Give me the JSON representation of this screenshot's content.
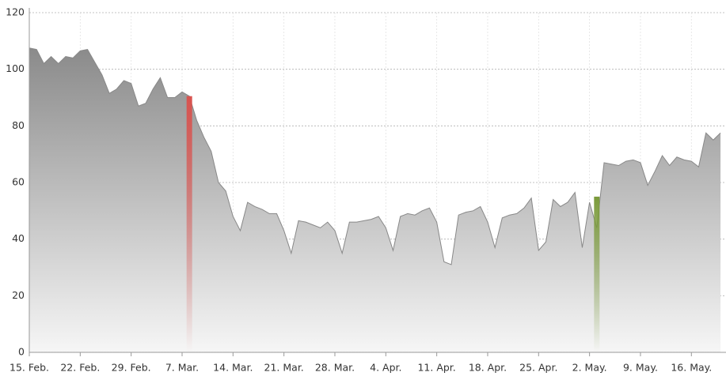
{
  "chart_data": {
    "type": "area",
    "categories": [
      "15. Feb.",
      null,
      null,
      null,
      null,
      null,
      null,
      "22. Feb.",
      null,
      null,
      null,
      null,
      null,
      null,
      "29. Feb.",
      null,
      null,
      null,
      null,
      null,
      null,
      "7. Mar.",
      null,
      null,
      null,
      null,
      null,
      null,
      "14. Mar.",
      null,
      null,
      null,
      null,
      null,
      null,
      "21. Mar.",
      null,
      null,
      null,
      null,
      null,
      null,
      "28. Mar.",
      null,
      null,
      null,
      null,
      null,
      null,
      "4. Apr.",
      null,
      null,
      null,
      null,
      null,
      null,
      "11. Apr.",
      null,
      null,
      null,
      null,
      null,
      null,
      "18. Apr.",
      null,
      null,
      null,
      null,
      null,
      null,
      "25. Apr.",
      null,
      null,
      null,
      null,
      null,
      null,
      "2. May.",
      null,
      null,
      null,
      null,
      null,
      null,
      "9. May.",
      null,
      null,
      null,
      null,
      null,
      null,
      "16. May.",
      null,
      null,
      null,
      null
    ],
    "series": [
      {
        "color": "#888888",
        "values": [
          107.5,
          107,
          102,
          104.5,
          102,
          104.5,
          104,
          106.5,
          107,
          102.5,
          98,
          91.5,
          93,
          96,
          95,
          87,
          88,
          93,
          97,
          90,
          90,
          92,
          90.5,
          82,
          76,
          71,
          60,
          57,
          48,
          43,
          53,
          51.5,
          50.5,
          49,
          49,
          43,
          35,
          46.5,
          46,
          45,
          44,
          46,
          43,
          35,
          46,
          46,
          46.5,
          47,
          48,
          44,
          36,
          48,
          49,
          48.5,
          50,
          51,
          46,
          32,
          31,
          48.5,
          49.5,
          50,
          51.5,
          46,
          37,
          47.5,
          48.5,
          49,
          51,
          54.5,
          36,
          39,
          54,
          51.5,
          53,
          56.5,
          37,
          53,
          44,
          67,
          66.5,
          66,
          67.5,
          68,
          67,
          59,
          64,
          69.5,
          66,
          69,
          68,
          67.5,
          65.5,
          77.5,
          75,
          77.5
        ]
      },
      {
        "color": "#d9534f",
        "values": [
          null,
          null,
          null,
          null,
          null,
          null,
          null,
          null,
          null,
          null,
          null,
          null,
          null,
          null,
          null,
          null,
          null,
          null,
          null,
          null,
          null,
          null,
          90.5,
          null,
          null,
          null,
          null,
          null,
          null,
          null,
          null,
          null,
          null,
          null,
          null,
          null,
          null,
          null,
          null,
          null,
          null,
          null,
          null,
          null,
          null,
          null,
          null,
          null,
          null,
          null,
          null,
          null,
          null,
          null,
          null,
          null,
          null,
          null,
          null,
          null,
          null,
          null,
          null,
          null,
          null,
          null,
          null,
          null,
          null,
          null,
          null,
          null,
          null,
          null,
          null,
          null,
          null,
          null,
          null,
          null,
          null,
          null,
          null,
          null,
          null,
          null,
          null,
          null,
          null,
          null,
          null,
          null,
          null,
          null,
          null,
          null
        ]
      },
      {
        "color": "#7a9a3a",
        "values": [
          null,
          null,
          null,
          null,
          null,
          null,
          null,
          null,
          null,
          null,
          null,
          null,
          null,
          null,
          null,
          null,
          null,
          null,
          null,
          null,
          null,
          null,
          null,
          null,
          null,
          null,
          null,
          null,
          null,
          null,
          null,
          null,
          null,
          null,
          null,
          null,
          null,
          null,
          null,
          null,
          null,
          null,
          null,
          null,
          null,
          null,
          null,
          null,
          null,
          null,
          null,
          null,
          null,
          null,
          null,
          null,
          null,
          null,
          null,
          null,
          null,
          null,
          null,
          null,
          null,
          null,
          null,
          null,
          null,
          null,
          null,
          null,
          null,
          null,
          null,
          null,
          null,
          null,
          55,
          null,
          null,
          null,
          null,
          null,
          null,
          null,
          null,
          null,
          null,
          null,
          null,
          null,
          null,
          null,
          null,
          null
        ]
      }
    ],
    "ylim": [
      0,
      120
    ],
    "yticks": [
      0,
      20,
      40,
      60,
      80,
      100,
      120
    ],
    "grid": true
  }
}
